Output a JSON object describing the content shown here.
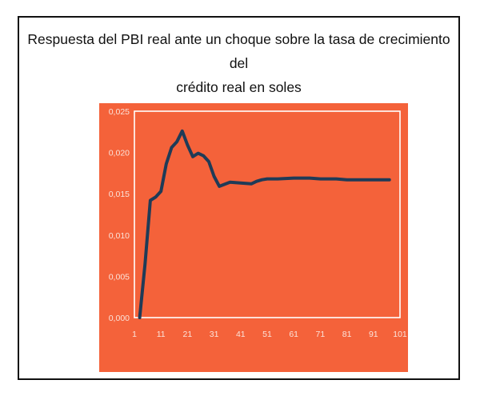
{
  "title_lines": [
    "Respuesta del PBI real ante un choque sobre la tasa de crecimiento del",
    "crédito real en soles"
  ],
  "colors": {
    "panel_background": "#f4623a",
    "line": "#1f3b57",
    "axis_text": "#fbe3da",
    "border": "#111111"
  },
  "chart_data": {
    "type": "line",
    "title": "Respuesta del PBI real ante un choque sobre la tasa de crecimiento del crédito real en soles",
    "xlabel": "",
    "ylabel": "",
    "xlim": [
      1,
      101
    ],
    "ylim": [
      0,
      0.025
    ],
    "x_ticks": [
      1,
      11,
      21,
      31,
      41,
      51,
      61,
      71,
      81,
      91,
      101
    ],
    "y_ticks": [
      "0,000",
      "0,005",
      "0,010",
      "0,015",
      "0,020",
      "0,025"
    ],
    "grid": false,
    "series": [
      {
        "name": "",
        "x": [
          3,
          5,
          7,
          9,
          11,
          13,
          15,
          17,
          19,
          21,
          23,
          25,
          27,
          29,
          31,
          33,
          37,
          41,
          45,
          47,
          49,
          51,
          55,
          61,
          67,
          71,
          77,
          81,
          87,
          91,
          97
        ],
        "y": [
          0.0,
          0.0065,
          0.0142,
          0.0146,
          0.0153,
          0.0186,
          0.0206,
          0.0213,
          0.0226,
          0.0209,
          0.0195,
          0.0199,
          0.0196,
          0.0189,
          0.0171,
          0.0159,
          0.0164,
          0.0163,
          0.0162,
          0.0165,
          0.0167,
          0.0168,
          0.0168,
          0.0169,
          0.0169,
          0.0168,
          0.0168,
          0.0167,
          0.0167,
          0.0167,
          0.0167
        ]
      }
    ]
  }
}
